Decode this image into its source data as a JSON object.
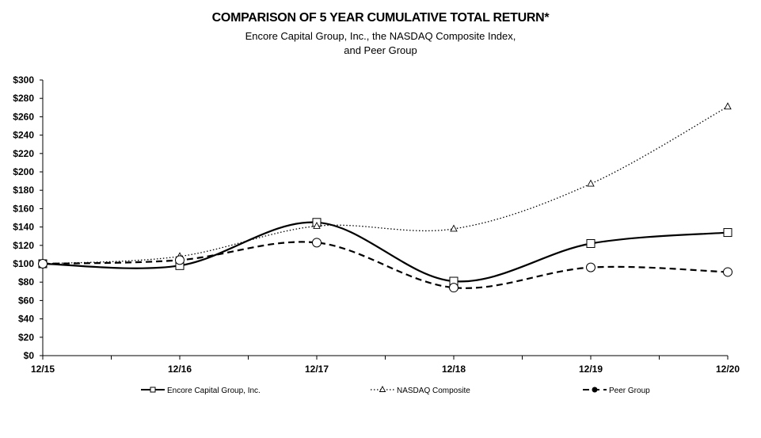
{
  "chart_data": {
    "type": "line",
    "title": "COMPARISON OF 5 YEAR CUMULATIVE TOTAL RETURN*",
    "subtitle_line1": "Encore Capital Group, Inc., the NASDAQ Composite Index,",
    "subtitle_line2": "and Peer Group",
    "x": [
      "12/15",
      "12/16",
      "12/17",
      "12/18",
      "12/19",
      "12/20"
    ],
    "y_tick_labels": [
      "$0",
      "$20",
      "$40",
      "$60",
      "$80",
      "$100",
      "$120",
      "$140",
      "$160",
      "$180",
      "$200",
      "$220",
      "$240",
      "$260",
      "$280",
      "$300"
    ],
    "ylim": [
      0,
      300
    ],
    "grid": false,
    "legend_position": "bottom",
    "series": [
      {
        "name": "Encore Capital Group, Inc.",
        "values": [
          100,
          98,
          145,
          81,
          122,
          134
        ],
        "marker": "square",
        "dash": "solid",
        "color": "#000000"
      },
      {
        "name": "NASDAQ Composite",
        "values": [
          100,
          108,
          141,
          138,
          187,
          271
        ],
        "marker": "triangle",
        "dash": "dotted",
        "color": "#000000"
      },
      {
        "name": "Peer Group",
        "values": [
          100,
          104,
          123,
          74,
          96,
          91
        ],
        "marker": "circle",
        "dash": "dashed",
        "color": "#000000"
      }
    ]
  }
}
